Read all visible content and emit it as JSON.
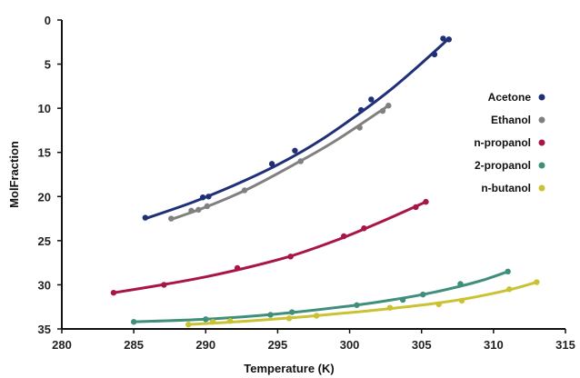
{
  "chart_data": {
    "type": "scatter",
    "title": "",
    "xlabel": "Temperature (K)",
    "ylabel": "MolFraction",
    "xlim": [
      280,
      315
    ],
    "ylim": [
      0,
      35
    ],
    "y_inverted": true,
    "xticks": [
      280,
      285,
      290,
      295,
      300,
      305,
      310,
      315
    ],
    "yticks": [
      0,
      5,
      10,
      15,
      20,
      25,
      30,
      35
    ],
    "grid": false,
    "legend_position": "right",
    "series": [
      {
        "name": "Acetone",
        "color": "#1f2f78",
        "points": [
          [
            285.8,
            22.4
          ],
          [
            289.8,
            20.1
          ],
          [
            290.2,
            20.0
          ],
          [
            294.6,
            16.3
          ],
          [
            296.2,
            14.8
          ],
          [
            300.8,
            10.2
          ],
          [
            301.5,
            9.0
          ],
          [
            305.9,
            3.9
          ],
          [
            306.5,
            2.1
          ],
          [
            306.9,
            2.2
          ]
        ],
        "fit": [
          [
            285.8,
            22.5
          ],
          [
            289,
            20.7
          ],
          [
            292,
            18.7
          ],
          [
            295,
            16.4
          ],
          [
            298,
            13.6
          ],
          [
            301,
            10.2
          ],
          [
            303,
            7.7
          ],
          [
            305,
            4.9
          ],
          [
            306.9,
            2.1
          ]
        ]
      },
      {
        "name": "Ethanol",
        "color": "#808080",
        "points": [
          [
            287.6,
            22.5
          ],
          [
            289.0,
            21.6
          ],
          [
            289.5,
            21.5
          ],
          [
            290.1,
            21.1
          ],
          [
            292.7,
            19.3
          ],
          [
            296.6,
            16.0
          ],
          [
            300.7,
            12.2
          ],
          [
            302.3,
            10.3
          ],
          [
            302.7,
            9.7
          ]
        ],
        "fit": [
          [
            287.6,
            22.6
          ],
          [
            290,
            21.2
          ],
          [
            293,
            19.1
          ],
          [
            296,
            16.5
          ],
          [
            299,
            13.7
          ],
          [
            302.7,
            9.7
          ]
        ]
      },
      {
        "name": "n-propanol",
        "color": "#a8154a",
        "points": [
          [
            283.6,
            30.9
          ],
          [
            287.1,
            30.0
          ],
          [
            292.2,
            28.1
          ],
          [
            295.9,
            26.8
          ],
          [
            299.6,
            24.5
          ],
          [
            301.0,
            23.6
          ],
          [
            304.6,
            21.2
          ],
          [
            305.3,
            20.6
          ]
        ],
        "fit": [
          [
            283.6,
            30.9
          ],
          [
            287,
            30.0
          ],
          [
            290,
            29.1
          ],
          [
            293,
            28.0
          ],
          [
            296,
            26.7
          ],
          [
            299,
            25.0
          ],
          [
            302,
            23.0
          ],
          [
            305.3,
            20.6
          ]
        ]
      },
      {
        "name": "2-propanol",
        "color": "#3f8f7b",
        "points": [
          [
            285.0,
            34.2
          ],
          [
            290.0,
            33.9
          ],
          [
            294.5,
            33.4
          ],
          [
            296.0,
            33.1
          ],
          [
            300.5,
            32.3
          ],
          [
            303.7,
            31.7
          ],
          [
            305.1,
            31.1
          ],
          [
            307.7,
            29.9
          ],
          [
            311.0,
            28.5
          ]
        ],
        "fit": [
          [
            285.0,
            34.2
          ],
          [
            290,
            33.9
          ],
          [
            295,
            33.3
          ],
          [
            300,
            32.4
          ],
          [
            303,
            31.7
          ],
          [
            306,
            30.8
          ],
          [
            309,
            29.6
          ],
          [
            311.0,
            28.5
          ]
        ]
      },
      {
        "name": "n-butanol",
        "color": "#c9c232",
        "points": [
          [
            288.8,
            34.5
          ],
          [
            290.5,
            34.2
          ],
          [
            291.7,
            34.1
          ],
          [
            295.8,
            33.8
          ],
          [
            297.7,
            33.5
          ],
          [
            302.8,
            32.6
          ],
          [
            306.2,
            32.2
          ],
          [
            307.8,
            31.8
          ],
          [
            311.1,
            30.5
          ],
          [
            313.0,
            29.7
          ]
        ],
        "fit": [
          [
            288.8,
            34.5
          ],
          [
            293,
            34.1
          ],
          [
            297,
            33.6
          ],
          [
            301,
            33.0
          ],
          [
            305,
            32.3
          ],
          [
            308,
            31.6
          ],
          [
            311,
            30.6
          ],
          [
            313.0,
            29.7
          ]
        ]
      }
    ]
  }
}
